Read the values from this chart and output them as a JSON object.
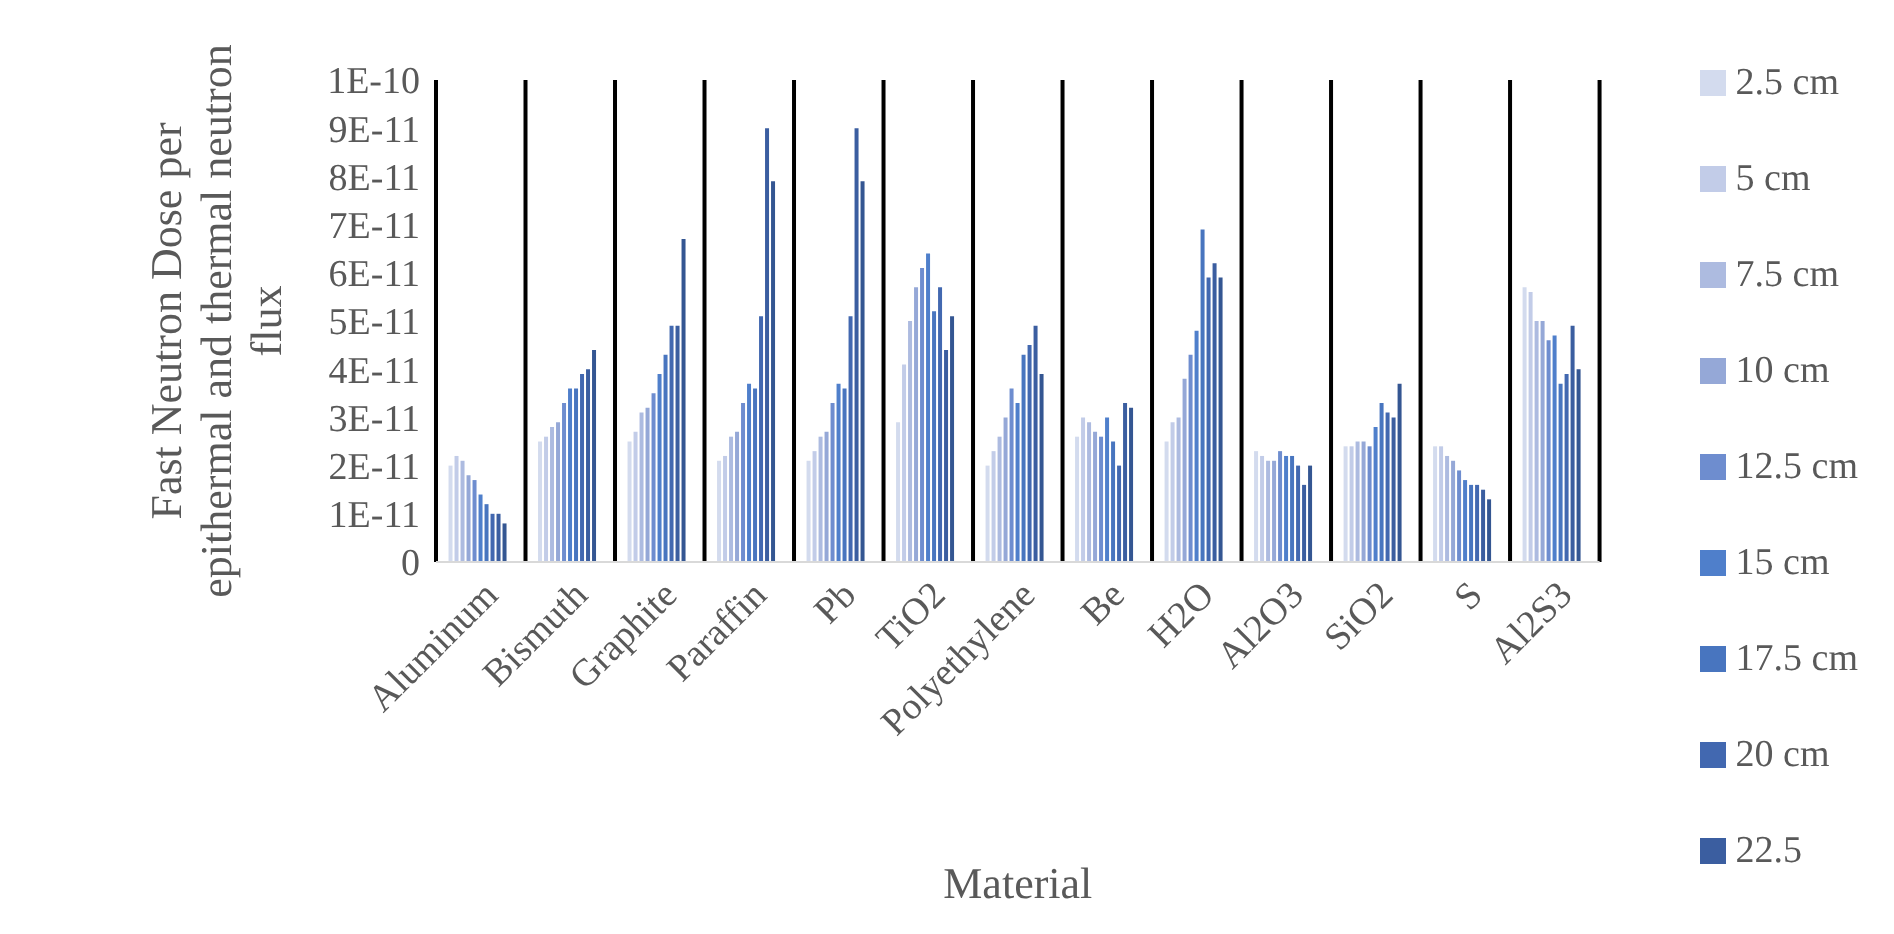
{
  "chart_data": {
    "type": "bar",
    "xlabel": "Material",
    "ylabel": "Fast Neutron Dose per epithermal and thermal neutron flux",
    "categories": [
      "Aluminum",
      "Bismuth",
      "Graphite",
      "Paraffin",
      "Pb",
      "TiO2",
      "Polyethylene",
      "Be",
      "H2O",
      "Al2O3",
      "SiO2",
      "S",
      "Al2S3"
    ],
    "series": [
      {
        "name": "2.5 cm",
        "color": "#d3dbee",
        "values": [
          2e-11,
          2.5e-11,
          2.5e-11,
          2.1e-11,
          2.1e-11,
          2.9e-11,
          2e-11,
          2.6e-11,
          2.5e-11,
          2.3e-11,
          2.4e-11,
          2.4e-11,
          5.7e-11
        ]
      },
      {
        "name": "5 cm",
        "color": "#c2cce8",
        "values": [
          2.2e-11,
          2.6e-11,
          2.7e-11,
          2.2e-11,
          2.3e-11,
          4.1e-11,
          2.3e-11,
          3e-11,
          2.9e-11,
          2.2e-11,
          2.4e-11,
          2.4e-11,
          5.6e-11
        ]
      },
      {
        "name": "7.5 cm",
        "color": "#adbbe0",
        "values": [
          2.1e-11,
          2.8e-11,
          3.1e-11,
          2.6e-11,
          2.6e-11,
          5e-11,
          2.6e-11,
          2.9e-11,
          3e-11,
          2.1e-11,
          2.5e-11,
          2.2e-11,
          5e-11
        ]
      },
      {
        "name": "10 cm",
        "color": "#95a8d7",
        "values": [
          1.8e-11,
          2.9e-11,
          3.2e-11,
          2.7e-11,
          2.7e-11,
          5.7e-11,
          3e-11,
          2.7e-11,
          3.8e-11,
          2.1e-11,
          2.5e-11,
          2.1e-11,
          5e-11
        ]
      },
      {
        "name": "12.5 cm",
        "color": "#6e8dcf",
        "values": [
          1.7e-11,
          3.3e-11,
          3.5e-11,
          3.3e-11,
          3.3e-11,
          6.1e-11,
          3.6e-11,
          2.6e-11,
          4.3e-11,
          2.3e-11,
          2.4e-11,
          1.9e-11,
          4.6e-11
        ]
      },
      {
        "name": "15 cm",
        "color": "#4f7fcb",
        "values": [
          1.4e-11,
          3.6e-11,
          3.9e-11,
          3.7e-11,
          3.7e-11,
          6.4e-11,
          3.3e-11,
          3e-11,
          4.8e-11,
          2.2e-11,
          2.8e-11,
          1.7e-11,
          4.7e-11
        ]
      },
      {
        "name": "17.5 cm",
        "color": "#4875bf",
        "values": [
          1.2e-11,
          3.6e-11,
          4.3e-11,
          3.6e-11,
          3.6e-11,
          5.2e-11,
          4.3e-11,
          2.5e-11,
          6.9e-11,
          2.2e-11,
          3.3e-11,
          1.6e-11,
          3.7e-11
        ]
      },
      {
        "name": "20 cm",
        "color": "#4268b0",
        "values": [
          1e-11,
          3.9e-11,
          4.9e-11,
          5.1e-11,
          5.1e-11,
          5.7e-11,
          4.5e-11,
          2e-11,
          5.9e-11,
          2e-11,
          3.1e-11,
          1.6e-11,
          3.9e-11
        ]
      },
      {
        "name": "22.5",
        "color": "#3b5ea0",
        "values": [
          1e-11,
          4e-11,
          4.9e-11,
          9e-11,
          9e-11,
          4.4e-11,
          4.9e-11,
          3.3e-11,
          6.2e-11,
          1.6e-11,
          3e-11,
          1.5e-11,
          4.9e-11
        ]
      },
      {
        "color": "#345692",
        "values": [
          8e-12,
          4.4e-11,
          6.7e-11,
          7.9e-11,
          7.9e-11,
          5.1e-11,
          3.9e-11,
          3.2e-11,
          5.9e-11,
          2e-11,
          3.7e-11,
          1.3e-11,
          4e-11
        ]
      }
    ],
    "ylim": [
      0,
      1e-10
    ],
    "yticks": [
      0,
      {
        "value": 1e-11,
        "label": "1E-11"
      },
      {
        "value": 2e-11,
        "label": "2E-11"
      },
      {
        "value": 3e-11,
        "label": "3E-11"
      },
      {
        "value": 4e-11,
        "label": "4E-11"
      },
      {
        "value": 5e-11,
        "label": "5E-11"
      },
      {
        "value": 6e-11,
        "label": "6E-11"
      },
      {
        "value": 7e-11,
        "label": "7E-11"
      },
      {
        "value": 8e-11,
        "label": "8E-11"
      },
      {
        "value": 9e-11,
        "label": "9E-11"
      },
      {
        "value": 1e-10,
        "label": "1E-10"
      }
    ],
    "grid": "x",
    "legend": "right"
  }
}
